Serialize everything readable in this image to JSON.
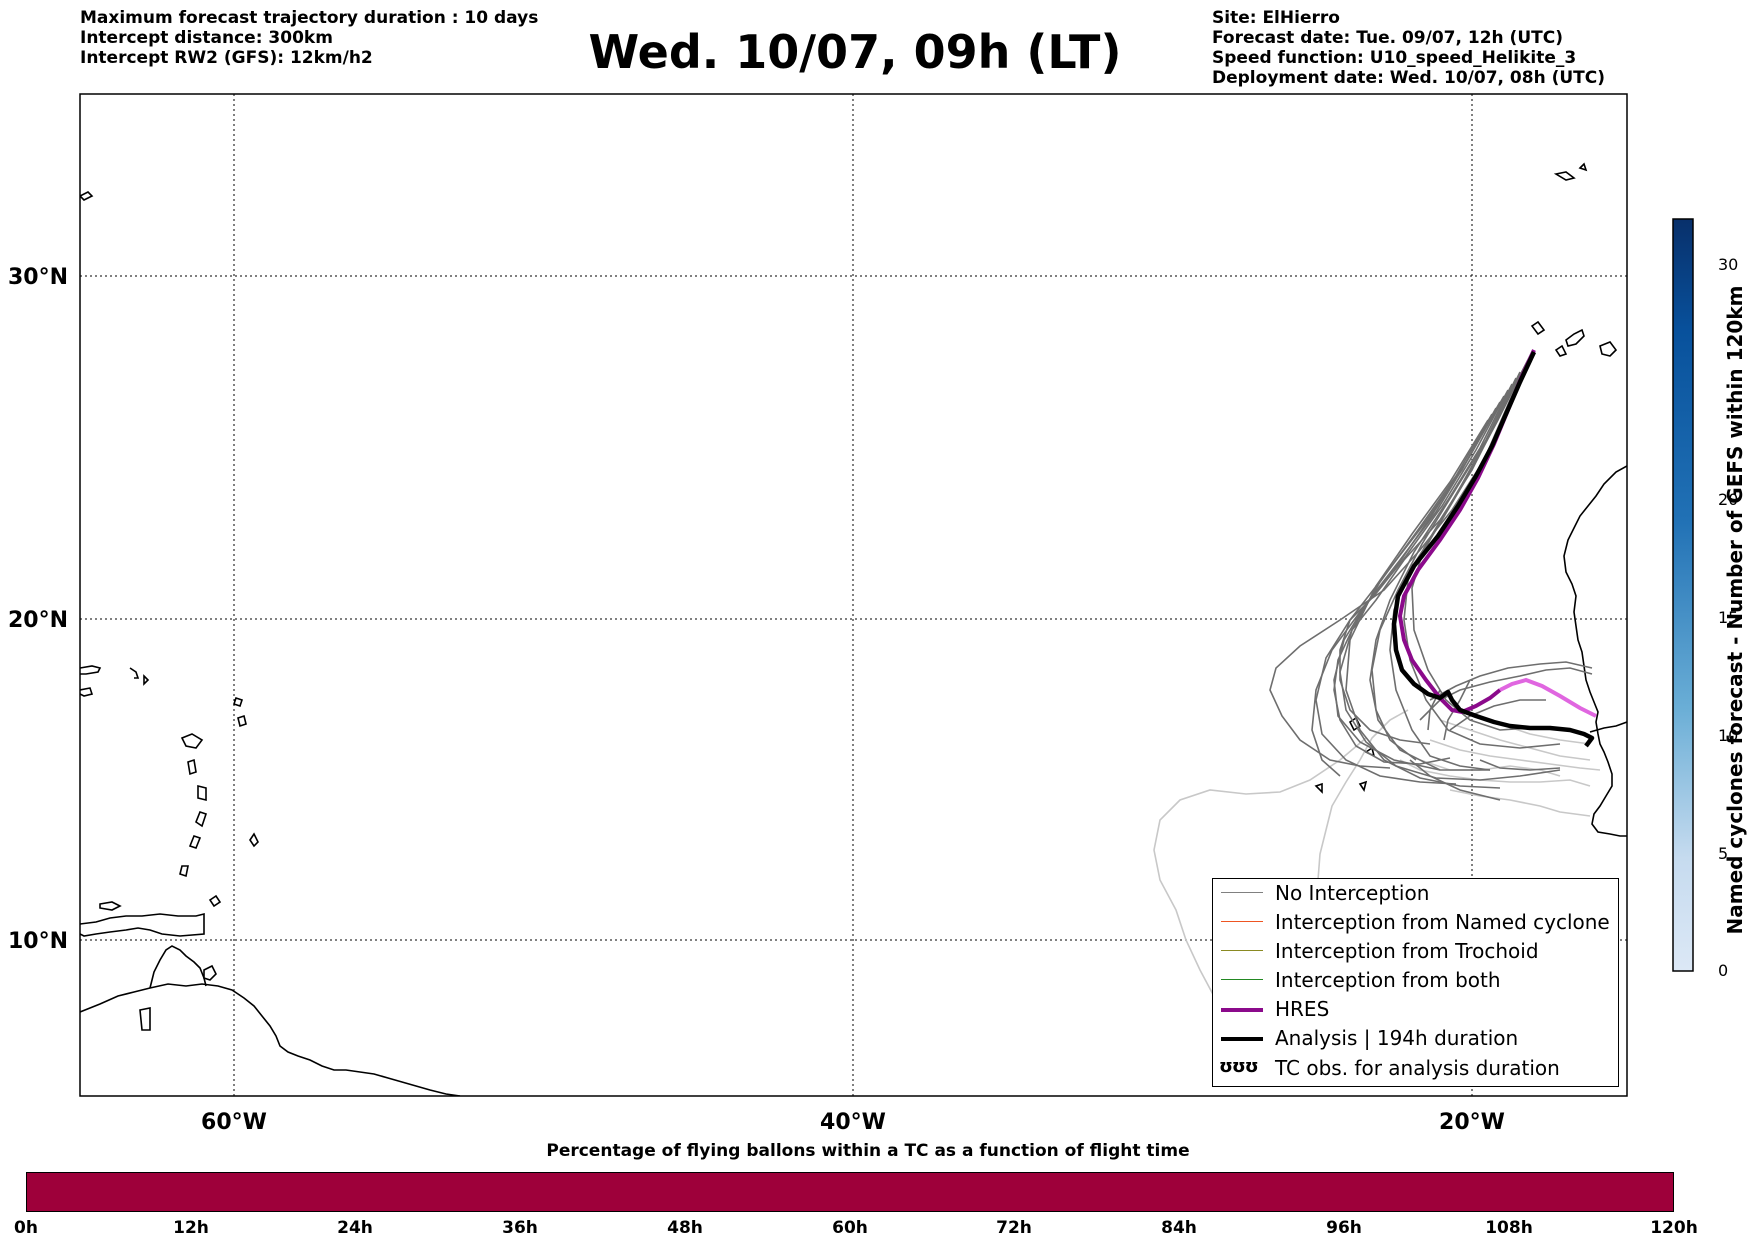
{
  "header": {
    "left_lines": [
      "Maximum forecast trajectory duration : 10 days",
      "Intercept distance: 300km",
      "Intercept RW2 (GFS):  12km/h2"
    ],
    "title": "Wed. 10/07, 09h (LT)",
    "right_lines": [
      "Site: ElHierro",
      "Forecast date: Tue. 09/07, 12h (UTC)",
      "Speed function: U10_speed_Helikite_3",
      "Deployment date: Wed. 10/07, 08h (UTC)"
    ]
  },
  "map": {
    "lat_labels": [
      "30°N",
      "20°N",
      "10°N"
    ],
    "lon_labels": [
      "60°W",
      "40°W",
      "20°W"
    ],
    "colors": {
      "ensemble_dark": "#666666",
      "ensemble_light": "#c8c8c8",
      "hres": "#8b0a8b",
      "hres_late": "#e066e0",
      "analysis": "#000000",
      "coastline": "#000000"
    }
  },
  "legend": {
    "items": [
      {
        "label": "No Interception",
        "color": "#808080",
        "kind": "line-thin"
      },
      {
        "label": "Interception from Named cyclone",
        "color": "#ee5522",
        "kind": "line-thin"
      },
      {
        "label": "Interception from Trochoid",
        "color": "#8a8a22",
        "kind": "line-thin"
      },
      {
        "label": "Interception from both",
        "color": "#228822",
        "kind": "line-thin"
      },
      {
        "label": "HRES",
        "color": "#8b0a8b",
        "kind": "line-thick"
      },
      {
        "label": "Analysis | 194h duration",
        "color": "#000000",
        "kind": "line-thick"
      },
      {
        "label": "TC obs. for analysis duration",
        "color": "#000000",
        "kind": "symbol",
        "symbol": "ʊʊʊ"
      }
    ]
  },
  "vertical_colorbar": {
    "title": "Named cyclones forecast - Number of GEFS within 120km",
    "ticks": [
      "30",
      "20",
      "15",
      "10",
      "5",
      "0"
    ],
    "tick_values": [
      30,
      20,
      15,
      10,
      5,
      0
    ],
    "max": 32
  },
  "horizontal_colorbar": {
    "title": "Percentage of flying ballons within a TC as a function of flight time",
    "ticks": [
      "0h",
      "12h",
      "24h",
      "36h",
      "48h",
      "60h",
      "72h",
      "84h",
      "96h",
      "108h",
      "120h"
    ],
    "color": "#9e003a"
  }
}
